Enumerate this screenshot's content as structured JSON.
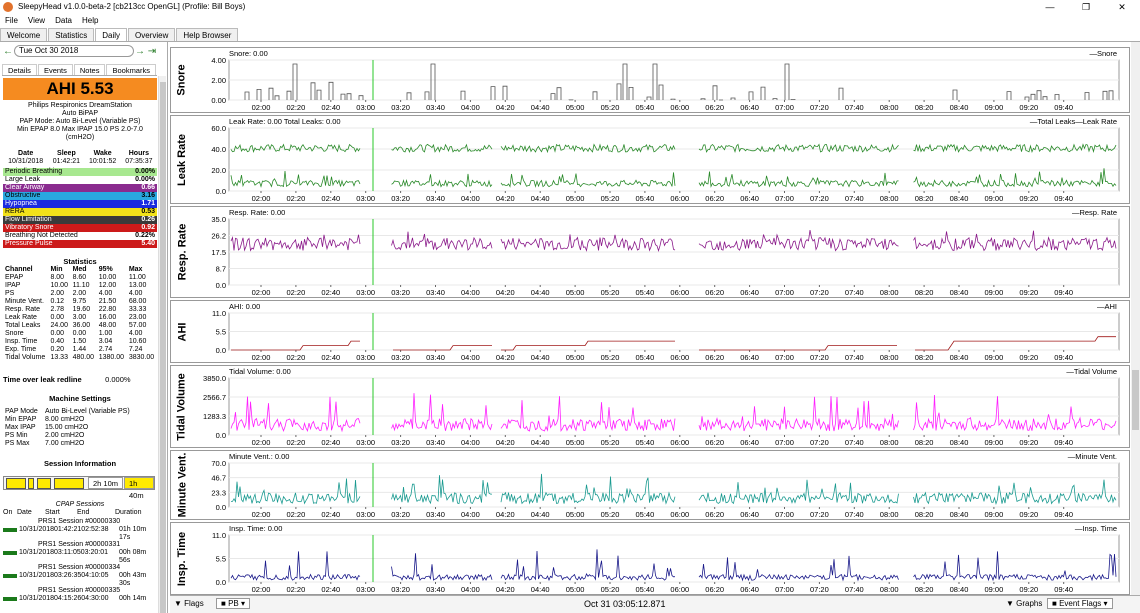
{
  "window": {
    "title": "SleepyHead v1.0.0-beta-2 [cb213cc OpenGL] (Profile: Bill Boys)",
    "min": "—",
    "max": "❐",
    "close": "✕"
  },
  "menu": [
    "File",
    "View",
    "Data",
    "Help"
  ],
  "tabs": [
    "Welcome",
    "Statistics",
    "Daily",
    "Overview",
    "Help Browser"
  ],
  "active_tab": "Daily",
  "sidebar": {
    "date": "Tue Oct 30 2018",
    "tabs": [
      "Details",
      "Events",
      "Notes",
      "Bookmarks"
    ],
    "ahi": "AHI 5.53",
    "machine": [
      "Philips Respironics DreamStation",
      "Auto BiPAP",
      "PAP Mode: Auto Bi-Level (Variable PS)",
      "Min EPAP 8.0 Max IPAP 15.0 PS 2.0-7.0",
      "(cmH2O)"
    ],
    "sleep_headers": [
      "Date",
      "Sleep",
      "Wake",
      "Hours"
    ],
    "sleep_values": [
      "10/31/2018",
      "01:42:21",
      "10:01:52",
      "07:35:37"
    ],
    "events": [
      {
        "label": "Periodic Breathing",
        "value": "0.00%",
        "color": "#a8e890",
        "text": "#000"
      },
      {
        "label": "Large Leak",
        "value": "0.00%",
        "color": "#ffffff",
        "text": "#000"
      },
      {
        "label": "Clear Airway",
        "value": "0.66",
        "color": "#8a2b8f",
        "text": "#fff"
      },
      {
        "label": "Obstructive",
        "value": "3.16",
        "color": "#29a8e0",
        "text": "#000"
      },
      {
        "label": "Hypopnea",
        "value": "1.71",
        "color": "#1a2ae0",
        "text": "#fff"
      },
      {
        "label": "RERA",
        "value": "0.53",
        "color": "#f2e21a",
        "text": "#000"
      },
      {
        "label": "Flow Limitation",
        "value": "0.26",
        "color": "#3a3a3a",
        "text": "#fff"
      },
      {
        "label": "Vibratory Snore",
        "value": "0.92",
        "color": "#cc1a1a",
        "text": "#fff"
      },
      {
        "label": "Breathing Not Detected",
        "value": "0.22%",
        "color": "#ffffff",
        "text": "#000"
      },
      {
        "label": "Pressure Pulse",
        "value": "5.40",
        "color": "#cc1a1a",
        "text": "#fff"
      }
    ],
    "statistics_title": "Statistics",
    "stat_headers": [
      "Channel",
      "Min",
      "Med",
      "95%",
      "Max"
    ],
    "stats": [
      [
        "EPAP",
        "8.00",
        "8.60",
        "10.00",
        "11.00"
      ],
      [
        "IPAP",
        "10.00",
        "11.10",
        "12.00",
        "13.00"
      ],
      [
        "PS",
        "2.00",
        "2.00",
        "4.00",
        "4.00"
      ],
      [
        "Minute Vent.",
        "0.12",
        "9.75",
        "21.50",
        "68.00"
      ],
      [
        "Resp. Rate",
        "2.78",
        "19.60",
        "22.80",
        "33.33"
      ],
      [
        "Leak Rate",
        "0.00",
        "3.00",
        "16.00",
        "23.00"
      ],
      [
        "Total Leaks",
        "24.00",
        "36.00",
        "48.00",
        "57.00"
      ],
      [
        "Snore",
        "0.00",
        "0.00",
        "1.00",
        "4.00"
      ],
      [
        "Insp. Time",
        "0.40",
        "1.50",
        "3.04",
        "10.60"
      ],
      [
        "Exp. Time",
        "0.20",
        "1.44",
        "2.74",
        "7.24"
      ],
      [
        "Tidal Volume",
        "13.33",
        "480.00",
        "1380.00",
        "3830.00"
      ]
    ],
    "time_over_leak_label": "Time over leak redline",
    "time_over_leak_value": "0.000%",
    "machine_settings_title": "Machine Settings",
    "machine_settings": [
      [
        "PAP Mode",
        "Auto Bi-Level (Variable PS)"
      ],
      [
        "Min EPAP",
        "8.00 cmH2O"
      ],
      [
        "Max IPAP",
        "15.00 cmH2O"
      ],
      [
        "PS Min",
        "2.00 cmH2O"
      ],
      [
        "PS Max",
        "7.00 cmH2O"
      ]
    ],
    "session_info_title": "Session Information",
    "session_bar_labels": [
      "2h 10m",
      "1h 40m"
    ],
    "cpap_sessions_title": "CPAP Sessions",
    "session_headers": [
      "On",
      "Date",
      "Start",
      "End",
      "Duration"
    ],
    "sessions": [
      {
        "name": "PRS1 Session #00000330",
        "row": "10/31/201801:42:2102:52:38",
        "duration": "01h 10m 17s"
      },
      {
        "name": "PRS1 Session #00000331",
        "row": "10/31/201803:11:0503:20:01",
        "duration": "00h 08m 56s"
      },
      {
        "name": "PRS1 Session #00000334",
        "row": "10/31/201803:26:3504:10:05",
        "duration": "00h 43m 30s"
      },
      {
        "name": "PRS1 Session #00000335",
        "row": "10/31/201804:15:2604:30:00",
        "duration": "00h 14m"
      }
    ]
  },
  "graphs": [
    {
      "id": "snore",
      "label": "Snore",
      "title": "Snore: 0.00",
      "legend": "—Snore",
      "yticks": [
        "4.00",
        "2.00",
        "0.00"
      ],
      "color": "#555555"
    },
    {
      "id": "leak",
      "label": "Leak Rate",
      "title": "Leak Rate: 0.00 Total Leaks: 0.00",
      "legend": "—Total Leaks—Leak Rate",
      "yticks": [
        "60.0",
        "40.0",
        "20.0",
        "0.0"
      ],
      "color": "#2a8a2a"
    },
    {
      "id": "resp",
      "label": "Resp. Rate",
      "title": "Resp. Rate: 0.00",
      "legend": "—Resp. Rate",
      "yticks": [
        "35.0",
        "26.2",
        "17.5",
        "8.7",
        "0.0"
      ],
      "color": "#8a1a8a"
    },
    {
      "id": "ahi",
      "label": "AHI",
      "title": "AHI: 0.00",
      "legend": "—AHI",
      "yticks": [
        "11.0",
        "5.5",
        "0.0"
      ],
      "color": "#a01818"
    },
    {
      "id": "tidal",
      "label": "Tidal Volume",
      "title": "Tidal Volume: 0.00",
      "legend": "—Tidal Volume",
      "yticks": [
        "3850.0",
        "2566.7",
        "1283.3",
        "0.0"
      ],
      "color": "#ff20ff"
    },
    {
      "id": "minvent",
      "label": "Minute Vent.",
      "title": "Minute Vent.: 0.00",
      "legend": "—Minute Vent.",
      "yticks": [
        "70.0",
        "46.7",
        "23.3",
        "0.0"
      ],
      "color": "#1a9a90"
    },
    {
      "id": "insp",
      "label": "Insp. Time",
      "title": "Insp. Time: 0.00",
      "legend": "—Insp. Time",
      "yticks": [
        "11.0",
        "5.5",
        "0.0"
      ],
      "color": "#1a1a8a"
    }
  ],
  "time_ticks": [
    "02:00",
    "02:20",
    "02:40",
    "03:00",
    "03:20",
    "03:40",
    "04:00",
    "04:20",
    "04:40",
    "05:00",
    "05:20",
    "05:40",
    "06:00",
    "06:20",
    "06:40",
    "07:00",
    "07:20",
    "07:40",
    "08:00",
    "08:20",
    "08:40",
    "09:00",
    "09:20",
    "09:40"
  ],
  "bottom": {
    "flags": "Flags",
    "pb": "PB",
    "time": "Oct 31 03:05:12.871",
    "graphs": "Graphs",
    "event_flags": "Event Flags"
  }
}
